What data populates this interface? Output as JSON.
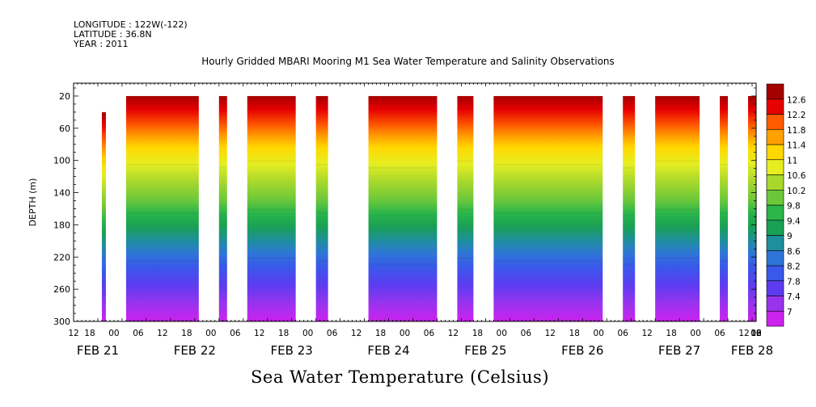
{
  "header": {
    "longitude": "LONGITUDE : 122W(-122)",
    "latitude": "LATITUDE : 36.8N",
    "year": "YEAR : 2011"
  },
  "title": "Hourly Gridded MBARI Mooring M1 Sea Water Temperature and Salinity Observations",
  "footer": "Sea Water Temperature (Celsius)",
  "chart_data": {
    "type": "heatmap",
    "title": "Hourly Gridded MBARI Mooring M1 Sea Water Temperature and Salinity Observations",
    "ylabel": "DEPTH (m)",
    "ylim": [
      300,
      0
    ],
    "y_ticks": [
      20,
      60,
      100,
      140,
      180,
      220,
      260,
      300
    ],
    "x_start_label": "FEB 21 12",
    "x_hour_ticks": [
      "12",
      "18",
      "00",
      "06",
      "12",
      "18",
      "00",
      "06",
      "12",
      "18",
      "00",
      "06",
      "12",
      "18",
      "00",
      "06",
      "12",
      "18",
      "00",
      "06",
      "12",
      "18",
      "00",
      "06",
      "12",
      "18",
      "00",
      "06",
      "12",
      "18",
      "00",
      "06",
      "12"
    ],
    "x_day_labels": [
      {
        "label": "FEB 21",
        "hour": 6
      },
      {
        "label": "FEB 22",
        "hour": 30
      },
      {
        "label": "FEB 23",
        "hour": 54
      },
      {
        "label": "FEB 24",
        "hour": 78
      },
      {
        "label": "FEB 25",
        "hour": 102
      },
      {
        "label": "FEB 26",
        "hour": 126
      },
      {
        "label": "FEB 27",
        "hour": 150
      },
      {
        "label": "FEB 28",
        "hour": 168
      }
    ],
    "data_segments_hours": [
      [
        7,
        8
      ],
      [
        13,
        31
      ],
      [
        36,
        38
      ],
      [
        43,
        55
      ],
      [
        60,
        63
      ],
      [
        73,
        90
      ],
      [
        95,
        99
      ],
      [
        104,
        131
      ],
      [
        136,
        139
      ],
      [
        144,
        155
      ],
      [
        160,
        162
      ],
      [
        167,
        169
      ]
    ],
    "surface_temp_c": 12.1,
    "mixed_layer_depth_m": 70,
    "deep_temp_c": 7.2,
    "colorbar": {
      "levels": [
        7,
        7.4,
        7.8,
        8.2,
        8.6,
        9,
        9.4,
        9.8,
        10.2,
        10.6,
        11,
        11.4,
        11.8,
        12.2,
        12.6
      ],
      "colors": [
        "#cc22ee",
        "#9933ee",
        "#5c3cf0",
        "#3a58ea",
        "#2f75d8",
        "#1e8f9c",
        "#1aa055",
        "#2bb54a",
        "#6cc83a",
        "#a8d82c",
        "#e6ee22",
        "#ffd800",
        "#ffa000",
        "#ff5a00",
        "#e60000",
        "#a50000"
      ]
    }
  }
}
